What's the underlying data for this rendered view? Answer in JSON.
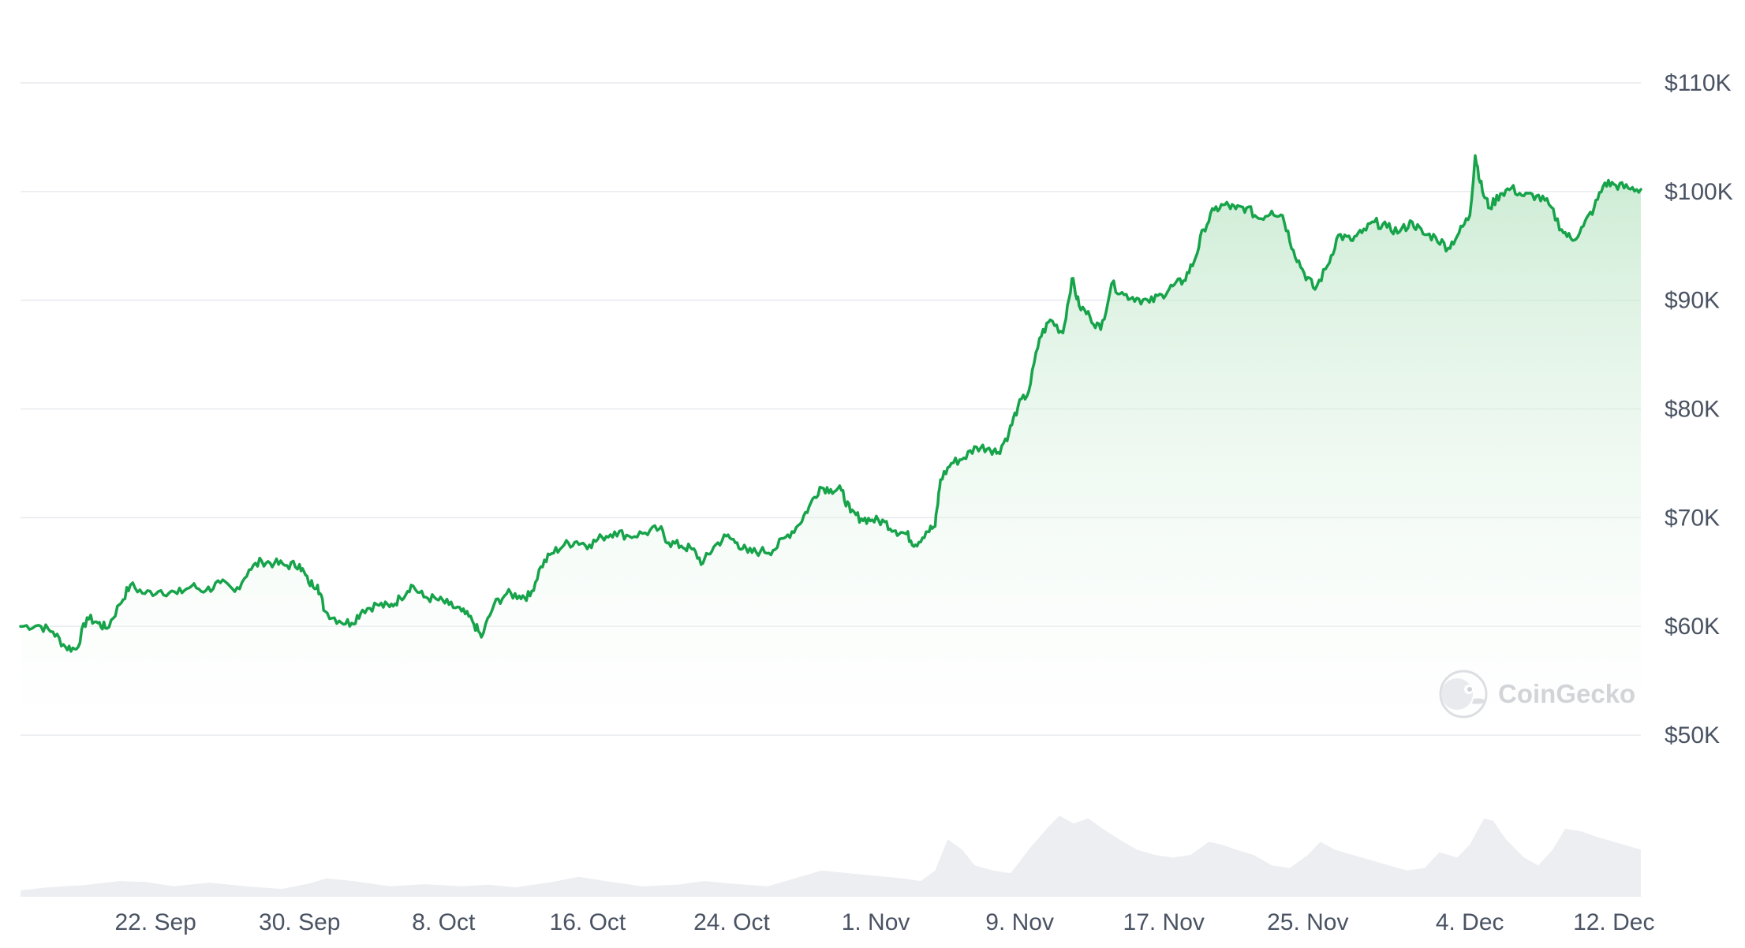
{
  "chart_data": {
    "type": "area",
    "title": "",
    "xlabel": "",
    "ylabel": "",
    "ylim": [
      50000,
      110000
    ],
    "y_ticks": [
      50000,
      60000,
      70000,
      80000,
      90000,
      100000,
      110000
    ],
    "y_tick_labels": [
      "$50K",
      "$60K",
      "$70K",
      "$80K",
      "$90K",
      "$100K",
      "$110K"
    ],
    "x_tick_labels": [
      "22. Sep",
      "30. Sep",
      "8. Oct",
      "16. Oct",
      "24. Oct",
      "1. Nov",
      "9. Nov",
      "17. Nov",
      "25. Nov",
      "4. Dec",
      "12. Dec"
    ],
    "x_tick_days": [
      22,
      30,
      38,
      46,
      54,
      62,
      70,
      78,
      86,
      95,
      103
    ],
    "x_range_days": [
      14.5,
      104.5
    ],
    "x_axis_note_days_from_1_Sep": true,
    "series": [
      {
        "values": [
          [
            14.5,
            60000
          ],
          [
            15.5,
            60100
          ],
          [
            16.3,
            59500
          ],
          [
            17.0,
            58100
          ],
          [
            17.6,
            57900
          ],
          [
            18.2,
            60800
          ],
          [
            18.8,
            60300
          ],
          [
            19.3,
            59800
          ],
          [
            20.0,
            62000
          ],
          [
            20.6,
            63800
          ],
          [
            21.4,
            63000
          ],
          [
            22.3,
            63300
          ],
          [
            23.2,
            63000
          ],
          [
            24.0,
            63700
          ],
          [
            24.8,
            63300
          ],
          [
            25.6,
            64000
          ],
          [
            26.4,
            63200
          ],
          [
            27.2,
            65200
          ],
          [
            27.9,
            66000
          ],
          [
            28.6,
            65800
          ],
          [
            29.3,
            65600
          ],
          [
            30.0,
            65700
          ],
          [
            30.5,
            64000
          ],
          [
            31.0,
            63800
          ],
          [
            31.4,
            61400
          ],
          [
            32.2,
            60500
          ],
          [
            32.9,
            60300
          ],
          [
            33.5,
            61500
          ],
          [
            34.3,
            62000
          ],
          [
            35.0,
            61800
          ],
          [
            35.6,
            62600
          ],
          [
            36.2,
            63800
          ],
          [
            36.9,
            62700
          ],
          [
            37.6,
            62500
          ],
          [
            38.3,
            62000
          ],
          [
            39.0,
            61400
          ],
          [
            39.6,
            60500
          ],
          [
            40.1,
            59000
          ],
          [
            40.8,
            62000
          ],
          [
            41.5,
            63000
          ],
          [
            42.2,
            62800
          ],
          [
            42.8,
            62800
          ],
          [
            43.4,
            65500
          ],
          [
            44.0,
            66700
          ],
          [
            44.7,
            67500
          ],
          [
            45.4,
            67800
          ],
          [
            46.1,
            67500
          ],
          [
            46.8,
            68200
          ],
          [
            47.5,
            68700
          ],
          [
            48.3,
            68300
          ],
          [
            49.2,
            68600
          ],
          [
            50.0,
            69000
          ],
          [
            50.5,
            67700
          ],
          [
            51.2,
            67400
          ],
          [
            51.8,
            67100
          ],
          [
            52.4,
            65800
          ],
          [
            53.0,
            67300
          ],
          [
            53.7,
            68300
          ],
          [
            54.3,
            67700
          ],
          [
            54.9,
            66800
          ],
          [
            55.6,
            66900
          ],
          [
            56.3,
            67000
          ],
          [
            57.0,
            68200
          ],
          [
            57.7,
            69300
          ],
          [
            58.3,
            71000
          ],
          [
            58.9,
            72800
          ],
          [
            59.5,
            72600
          ],
          [
            60.1,
            72500
          ],
          [
            60.6,
            70500
          ],
          [
            61.2,
            69900
          ],
          [
            61.8,
            69800
          ],
          [
            62.5,
            69600
          ],
          [
            63.1,
            68800
          ],
          [
            63.7,
            68500
          ],
          [
            64.2,
            67500
          ],
          [
            64.8,
            68700
          ],
          [
            65.3,
            69200
          ],
          [
            65.6,
            73500
          ],
          [
            66.2,
            75000
          ],
          [
            66.9,
            75500
          ],
          [
            67.6,
            76500
          ],
          [
            68.3,
            76400
          ],
          [
            68.8,
            76000
          ],
          [
            69.4,
            77800
          ],
          [
            69.9,
            80200
          ],
          [
            70.5,
            81600
          ],
          [
            71.1,
            86500
          ],
          [
            71.7,
            88200
          ],
          [
            72.4,
            87000
          ],
          [
            72.9,
            92000
          ],
          [
            73.3,
            89500
          ],
          [
            73.9,
            88500
          ],
          [
            74.5,
            87300
          ],
          [
            75.1,
            91500
          ],
          [
            75.8,
            90500
          ],
          [
            76.5,
            90200
          ],
          [
            77.2,
            89800
          ],
          [
            77.9,
            90500
          ],
          [
            78.5,
            91300
          ],
          [
            79.1,
            91800
          ],
          [
            79.7,
            93600
          ],
          [
            80.2,
            96500
          ],
          [
            80.8,
            98300
          ],
          [
            81.4,
            98800
          ],
          [
            82.0,
            98400
          ],
          [
            82.6,
            98500
          ],
          [
            83.3,
            97500
          ],
          [
            84.0,
            98200
          ],
          [
            84.6,
            97800
          ],
          [
            85.2,
            94600
          ],
          [
            85.8,
            92500
          ],
          [
            86.4,
            91000
          ],
          [
            87.1,
            93200
          ],
          [
            87.7,
            96000
          ],
          [
            88.4,
            95500
          ],
          [
            89.0,
            96200
          ],
          [
            89.7,
            97200
          ],
          [
            90.4,
            96700
          ],
          [
            91.1,
            96300
          ],
          [
            91.8,
            97200
          ],
          [
            92.4,
            96100
          ],
          [
            93.1,
            95800
          ],
          [
            93.8,
            94800
          ],
          [
            94.4,
            96200
          ],
          [
            95.0,
            97800
          ],
          [
            95.3,
            103300
          ],
          [
            95.7,
            100000
          ],
          [
            96.1,
            98500
          ],
          [
            96.7,
            99800
          ],
          [
            97.3,
            100300
          ],
          [
            98.0,
            99600
          ],
          [
            98.7,
            99600
          ],
          [
            99.4,
            98800
          ],
          [
            100.1,
            96500
          ],
          [
            100.7,
            95500
          ],
          [
            101.3,
            96800
          ],
          [
            101.9,
            98500
          ],
          [
            102.5,
            100800
          ],
          [
            103.1,
            100600
          ],
          [
            103.8,
            100300
          ],
          [
            104.5,
            100200
          ]
        ]
      }
    ],
    "volume": {
      "values": [
        [
          14.5,
          0.12
        ],
        [
          16.0,
          0.18
        ],
        [
          18.0,
          0.22
        ],
        [
          20.0,
          0.3
        ],
        [
          21.5,
          0.28
        ],
        [
          23.0,
          0.2
        ],
        [
          25.0,
          0.27
        ],
        [
          27.0,
          0.2
        ],
        [
          29.0,
          0.15
        ],
        [
          30.5,
          0.25
        ],
        [
          31.5,
          0.35
        ],
        [
          33.0,
          0.3
        ],
        [
          35.0,
          0.2
        ],
        [
          37.0,
          0.24
        ],
        [
          39.0,
          0.2
        ],
        [
          40.5,
          0.23
        ],
        [
          42.0,
          0.18
        ],
        [
          44.0,
          0.28
        ],
        [
          45.5,
          0.38
        ],
        [
          47.0,
          0.3
        ],
        [
          49.0,
          0.2
        ],
        [
          51.0,
          0.23
        ],
        [
          52.5,
          0.3
        ],
        [
          54.0,
          0.25
        ],
        [
          56.0,
          0.2
        ],
        [
          57.5,
          0.35
        ],
        [
          59.0,
          0.5
        ],
        [
          60.5,
          0.45
        ],
        [
          62.0,
          0.4
        ],
        [
          63.5,
          0.35
        ],
        [
          64.5,
          0.3
        ],
        [
          65.3,
          0.5
        ],
        [
          66.0,
          1.1
        ],
        [
          66.8,
          0.9
        ],
        [
          67.5,
          0.6
        ],
        [
          68.5,
          0.5
        ],
        [
          69.5,
          0.45
        ],
        [
          70.5,
          0.9
        ],
        [
          71.5,
          1.3
        ],
        [
          72.2,
          1.55
        ],
        [
          73.0,
          1.4
        ],
        [
          73.8,
          1.5
        ],
        [
          74.6,
          1.3
        ],
        [
          75.5,
          1.1
        ],
        [
          76.5,
          0.9
        ],
        [
          77.5,
          0.8
        ],
        [
          78.5,
          0.75
        ],
        [
          79.5,
          0.8
        ],
        [
          80.5,
          1.05
        ],
        [
          81.2,
          1.0
        ],
        [
          82.0,
          0.9
        ],
        [
          83.0,
          0.8
        ],
        [
          84.0,
          0.6
        ],
        [
          85.0,
          0.55
        ],
        [
          86.0,
          0.8
        ],
        [
          86.7,
          1.05
        ],
        [
          87.5,
          0.9
        ],
        [
          88.5,
          0.8
        ],
        [
          89.5,
          0.7
        ],
        [
          90.5,
          0.6
        ],
        [
          91.5,
          0.5
        ],
        [
          92.5,
          0.55
        ],
        [
          93.3,
          0.85
        ],
        [
          94.3,
          0.75
        ],
        [
          95.0,
          1.0
        ],
        [
          95.8,
          1.5
        ],
        [
          96.3,
          1.45
        ],
        [
          97.0,
          1.1
        ],
        [
          98.0,
          0.75
        ],
        [
          98.8,
          0.6
        ],
        [
          99.6,
          0.9
        ],
        [
          100.3,
          1.3
        ],
        [
          101.2,
          1.25
        ],
        [
          102.0,
          1.15
        ],
        [
          103.0,
          1.05
        ],
        [
          104.0,
          0.95
        ],
        [
          104.5,
          0.9
        ]
      ]
    },
    "colors": {
      "line": "#16a34a",
      "area_top": "#b9e4c4",
      "area_bottom": "#ffffff",
      "grid": "#e7e9ed",
      "volume": "#eceef1",
      "tick_text": "#4a5363"
    },
    "watermark": "CoinGecko",
    "grid": true,
    "legend": "none"
  }
}
